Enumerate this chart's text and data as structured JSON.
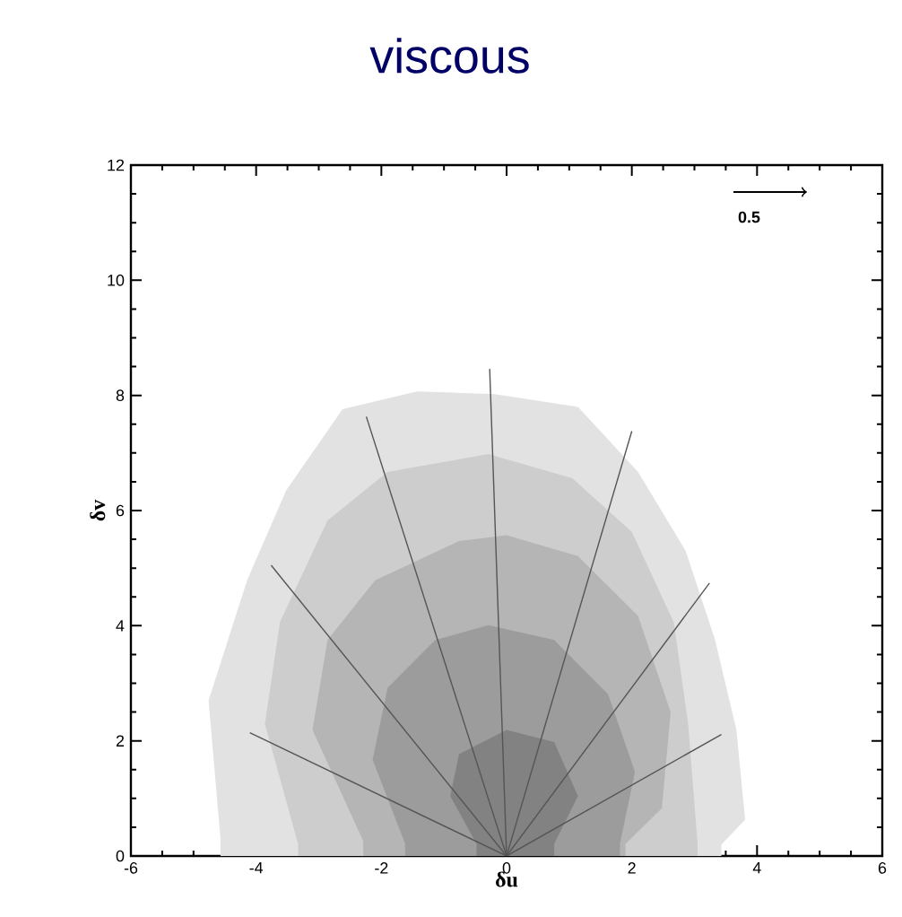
{
  "chart_data": {
    "type": "area",
    "title": "viscous",
    "xlabel": "δu",
    "ylabel": "δv",
    "xlim": [
      -6,
      6
    ],
    "ylim": [
      0,
      12
    ],
    "xticks": [
      -6,
      -4,
      -2,
      0,
      2,
      4,
      6
    ],
    "yticks": [
      0,
      2,
      4,
      6,
      8,
      10,
      12
    ],
    "annotations": [
      "0.5"
    ],
    "series": [
      {
        "color": "#e2e2e2",
        "x": [
          -4.57,
          -4.76,
          -4.14,
          -3.52,
          -2.62,
          -1.43,
          -0.19,
          1.14,
          2.1,
          2.86,
          3.33,
          3.67,
          3.81,
          3.43
        ],
        "values": [
          0.31,
          2.7,
          4.8,
          6.35,
          7.76,
          8.07,
          8.02,
          7.8,
          6.67,
          5.3,
          3.75,
          2.19,
          0.63,
          0.2
        ]
      },
      {
        "color": "#cdcdcd",
        "x": [
          -3.33,
          -3.86,
          -3.62,
          -2.86,
          -1.9,
          -0.29,
          1.05,
          2.0,
          2.67,
          2.9,
          3.05
        ],
        "values": [
          0.21,
          2.29,
          4.06,
          5.83,
          6.67,
          6.98,
          6.56,
          5.63,
          4.06,
          2.29,
          0.21
        ]
      },
      {
        "color": "#b5b5b5",
        "x": [
          -2.29,
          -3.1,
          -2.86,
          -2.1,
          -0.76,
          0,
          1.14,
          2.1,
          2.62,
          2.48,
          1.9
        ],
        "values": [
          0.26,
          2.19,
          3.75,
          4.79,
          5.47,
          5.57,
          5.21,
          4.17,
          2.5,
          0.83,
          0.21
        ]
      },
      {
        "color": "#9c9c9c",
        "x": [
          -1.62,
          -2.14,
          -1.9,
          -1.14,
          -0.29,
          0.76,
          1.62,
          2.05,
          1.81
        ],
        "values": [
          0.21,
          1.67,
          2.92,
          3.75,
          4.01,
          3.75,
          2.81,
          1.46,
          0.21
        ]
      },
      {
        "color": "#828282",
        "x": [
          -0.48,
          -0.9,
          -0.76,
          0,
          0.76,
          1.14,
          0.76
        ],
        "values": [
          0.21,
          1.04,
          1.77,
          2.19,
          1.98,
          1.04,
          0.21
        ]
      },
      {
        "type": "line",
        "color": "#555555",
        "x": [
          -4.1,
          0
        ],
        "values": [
          2.14,
          0
        ]
      },
      {
        "type": "line",
        "color": "#555555",
        "x": [
          -3.76,
          0
        ],
        "values": [
          5.05,
          0
        ]
      },
      {
        "type": "line",
        "color": "#555555",
        "x": [
          -2.24,
          0
        ],
        "values": [
          7.63,
          0
        ]
      },
      {
        "type": "line",
        "color": "#555555",
        "x": [
          -0.27,
          0
        ],
        "values": [
          8.46,
          0
        ]
      },
      {
        "type": "line",
        "color": "#555555",
        "x": [
          2.0,
          0
        ],
        "values": [
          7.38,
          0
        ]
      },
      {
        "type": "line",
        "color": "#555555",
        "x": [
          3.24,
          0
        ],
        "values": [
          4.74,
          0
        ]
      },
      {
        "type": "line",
        "color": "#555555",
        "x": [
          3.43,
          0
        ],
        "values": [
          2.11,
          0
        ]
      }
    ]
  }
}
